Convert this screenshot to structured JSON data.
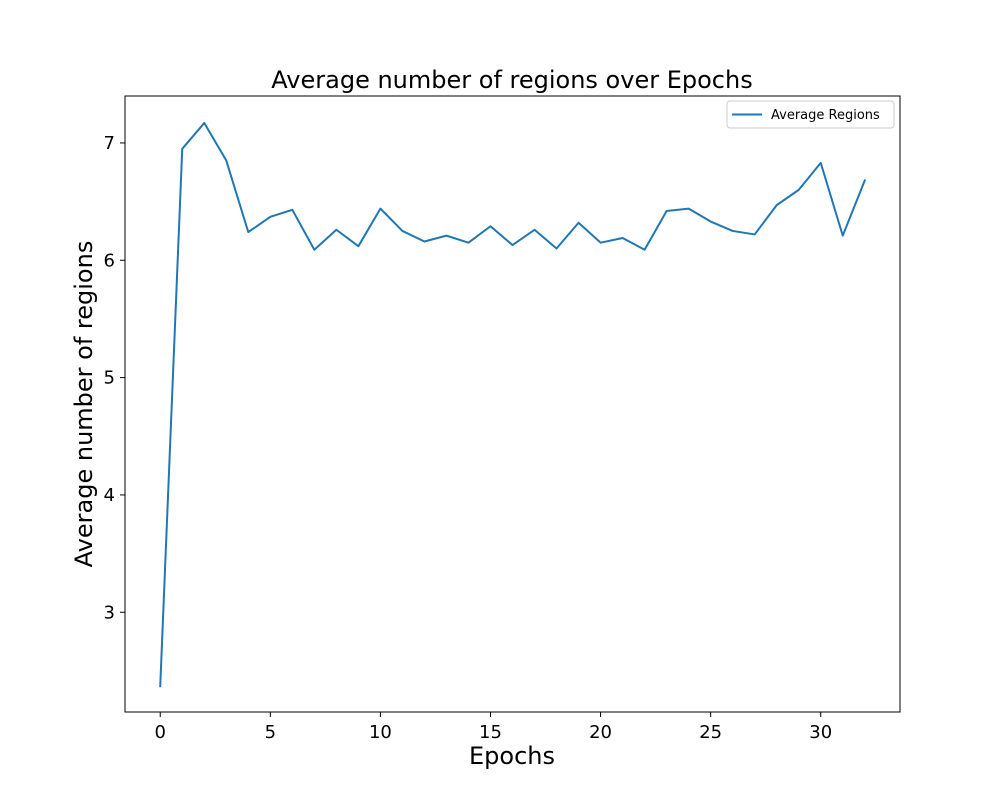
{
  "chart_data": {
    "type": "line",
    "title": "Average number of regions over Epochs",
    "xlabel": "Epochs",
    "ylabel": "Average number of regions",
    "xlim": [
      -1.6,
      33.6
    ],
    "ylim": [
      2.15,
      7.4
    ],
    "xticks": [
      0,
      5,
      10,
      15,
      20,
      25,
      30
    ],
    "yticks": [
      3,
      4,
      5,
      6,
      7
    ],
    "grid": false,
    "legend_position": "top-right",
    "series": [
      {
        "name": "Average Regions",
        "color": "#1f77b4",
        "x": [
          0,
          1,
          2,
          3,
          4,
          5,
          6,
          7,
          8,
          9,
          10,
          11,
          12,
          13,
          14,
          15,
          16,
          17,
          18,
          19,
          20,
          21,
          22,
          23,
          24,
          25,
          26,
          27,
          28,
          29,
          30,
          31,
          32
        ],
        "y": [
          2.37,
          6.95,
          7.17,
          6.85,
          6.24,
          6.37,
          6.43,
          6.09,
          6.26,
          6.12,
          6.44,
          6.25,
          6.16,
          6.21,
          6.15,
          6.29,
          6.13,
          6.26,
          6.1,
          6.32,
          6.15,
          6.19,
          6.09,
          6.42,
          6.44,
          6.33,
          6.25,
          6.22,
          6.47,
          6.6,
          6.83,
          6.21,
          6.68
        ]
      }
    ]
  }
}
